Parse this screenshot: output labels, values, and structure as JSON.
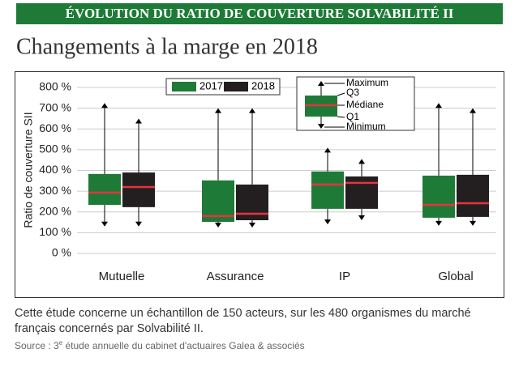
{
  "header": "ÉVOLUTION DU RATIO DE COUVERTURE SOLVABILITÉ II",
  "chart_data": {
    "type": "box",
    "title": "Changements à la marge en 2018",
    "y_label": "Ratio de couverture SII",
    "categories": [
      "Mutuelle",
      "Assurance",
      "IP",
      "Global"
    ],
    "series": [
      {
        "name": "2017",
        "color": "#1e7b37",
        "min": [
          130,
          125,
          140,
          133
        ],
        "q1": [
          234,
          152,
          215,
          172
        ],
        "median": [
          293,
          180,
          332,
          234
        ],
        "q3": [
          383,
          352,
          395,
          375
        ],
        "max": [
          725,
          700,
          510,
          725
        ]
      },
      {
        "name": "2018",
        "color": "#231f20",
        "min": [
          130,
          125,
          160,
          133
        ],
        "q1": [
          223,
          160,
          215,
          176
        ],
        "median": [
          320,
          191,
          340,
          242
        ],
        "q3": [
          390,
          332,
          371,
          379
        ],
        "max": [
          650,
          700,
          455,
          700
        ]
      }
    ],
    "median_color": "#e8313f",
    "ylim": [
      0,
      800
    ],
    "yticks": [
      {
        "value": 0,
        "label": "0 %"
      },
      {
        "value": 100,
        "label": "100 %"
      },
      {
        "value": 200,
        "label": "200 %"
      },
      {
        "value": 300,
        "label": "300 %"
      },
      {
        "value": 400,
        "label": "400 %"
      },
      {
        "value": 500,
        "label": "500 %"
      },
      {
        "value": 600,
        "label": "600 %"
      },
      {
        "value": 700,
        "label": "700 %"
      },
      {
        "value": 800,
        "label": "800 %"
      }
    ],
    "grid": true,
    "key_labels": [
      "Maximum",
      "Q3",
      "Médiane",
      "Q1",
      "Minimum"
    ]
  },
  "note": "Cette étude concerne un échantillon de 150 acteurs, sur les 480 organismes du marché français concernés par Solvabilité II.",
  "source": {
    "before": "Source : 3",
    "sup": "e",
    "after": " étude annuelle du cabinet d'actuaires Galea & associés"
  }
}
